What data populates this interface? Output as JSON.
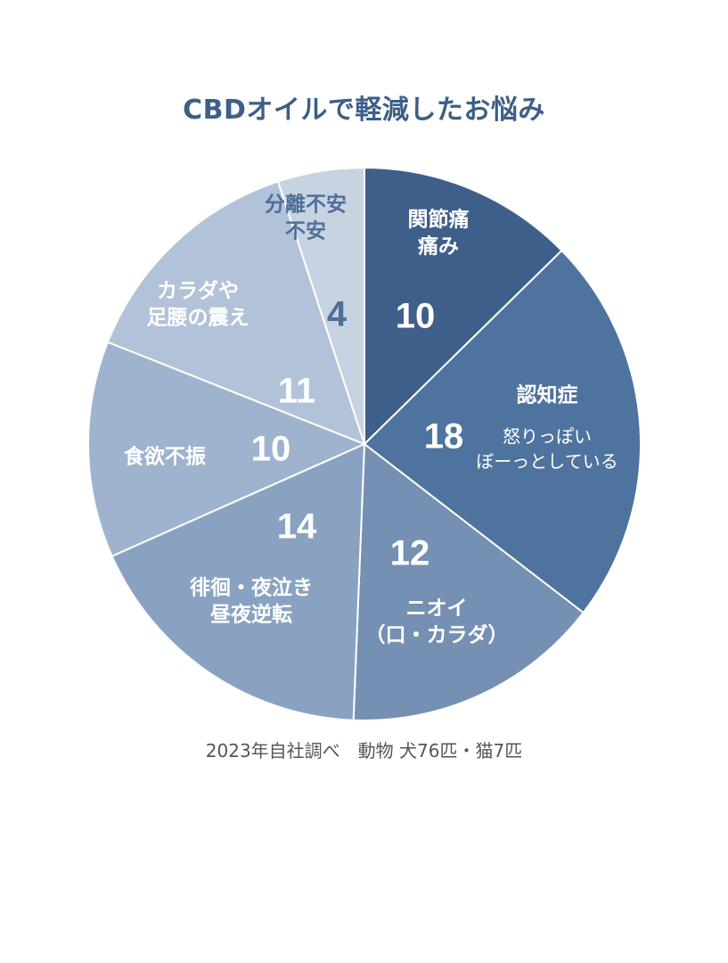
{
  "chart_data": {
    "type": "pie",
    "title": "CBDオイルで軽減したお悩み",
    "source_note": "2023年自社調べ　動物 犬76匹・猫7匹",
    "slices": [
      {
        "label": [
          "関節痛",
          "痛み"
        ],
        "sublabel": [],
        "value": 10,
        "color": "#3e5f8a",
        "text_color": "#ffffff"
      },
      {
        "label": [
          "認知症"
        ],
        "sublabel": [
          "怒りっぽい",
          "ぼーっとしている"
        ],
        "value": 18,
        "color": "#4f739f",
        "text_color": "#ffffff"
      },
      {
        "label": [
          "ニオイ",
          "（口・カラダ）"
        ],
        "sublabel": [],
        "value": 12,
        "color": "#7690b3",
        "text_color": "#ffffff"
      },
      {
        "label": [
          "徘徊・夜泣き",
          "昼夜逆転"
        ],
        "sublabel": [],
        "value": 14,
        "color": "#8aa2c2",
        "text_color": "#ffffff"
      },
      {
        "label": [
          "食欲不振"
        ],
        "sublabel": [],
        "value": 10,
        "color": "#9fb3cf",
        "text_color": "#ffffff"
      },
      {
        "label": [
          "カラダや",
          "足腰の震え"
        ],
        "sublabel": [],
        "value": 11,
        "color": "#b2c2d9",
        "text_color": "#ffffff"
      },
      {
        "label": [
          "分離不安",
          "不安"
        ],
        "sublabel": [],
        "value": 4,
        "color": "#c8d3e2",
        "text_color": "#4f6f98"
      }
    ]
  }
}
